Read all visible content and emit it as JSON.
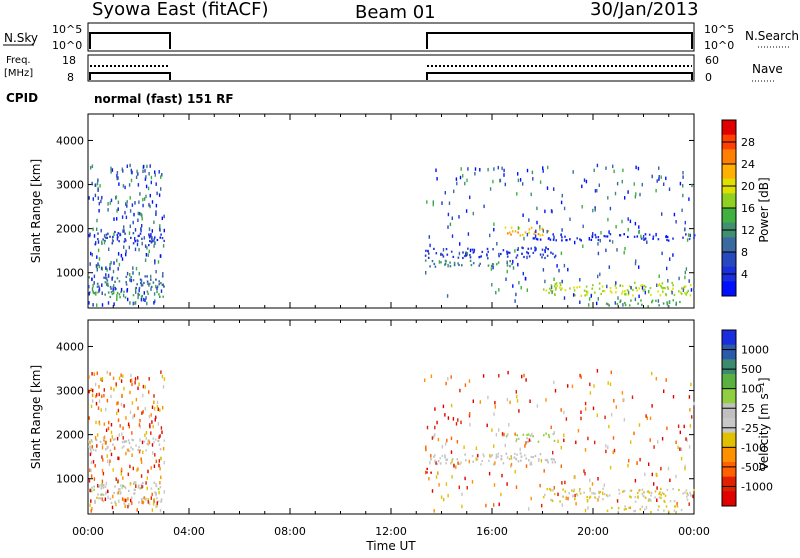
{
  "header": {
    "title": "Syowa East (fitACF)",
    "beam": "Beam 01",
    "date": "30/Jan/2013"
  },
  "panels": {
    "nsky": {
      "label": "N.Sky",
      "right_label": "N.Search",
      "left_ticks": [
        "10^5",
        "10^0"
      ],
      "right_ticks": [
        "10^5",
        "10^0"
      ]
    },
    "freq": {
      "label_line1": "Freq.",
      "label_line2": "[MHz]",
      "right_label": "Nave",
      "left_ticks": [
        "18",
        "8"
      ],
      "right_ticks": [
        "60",
        "0"
      ]
    },
    "cpid": {
      "label": "CPID",
      "text": "normal (fast) 151 RF"
    }
  },
  "colorbars": {
    "power": {
      "label": "Power [dB]",
      "ticks": [
        "28",
        "24",
        "20",
        "16",
        "12",
        "8",
        "4"
      ],
      "colors": [
        "#e00000",
        "#ff4000",
        "#ff8000",
        "#ffb000",
        "#e0e000",
        "#90d020",
        "#40b040",
        "#409070",
        "#3a6aa0",
        "#2848c0",
        "#1a2ee0",
        "#0010ff"
      ]
    },
    "velocity": {
      "label": "Velocity [m s⁻¹]",
      "ticks": [
        "1000",
        "500",
        "100",
        "25",
        "-25",
        "-100",
        "-500",
        "-1000"
      ],
      "colors": [
        "#1a2ee0",
        "#2a5aa8",
        "#3c8a70",
        "#5ab040",
        "#90d040",
        "#c0c0c0",
        "#c8c8c8",
        "#e0c000",
        "#ff9000",
        "#ff6000",
        "#e02000",
        "#e00000"
      ]
    }
  },
  "x_axis": {
    "label": "Time UT",
    "ticks": [
      "00:00",
      "04:00",
      "08:00",
      "12:00",
      "16:00",
      "20:00",
      "00:00"
    ]
  },
  "chart_data": [
    {
      "type": "heatmap",
      "name": "power",
      "ylabel": "Slant Range [km]",
      "xlabel": "",
      "ylim": [
        200,
        4600
      ],
      "xlim_hours": [
        0,
        24
      ],
      "yticks": [
        1000,
        2000,
        3000,
        4000
      ],
      "xticks": [
        "00:00",
        "04:00",
        "08:00",
        "12:00",
        "16:00",
        "20:00",
        "00:00"
      ],
      "data_gaps_hours": [
        [
          3.0,
          13.3
        ]
      ],
      "echo_bands": [
        {
          "t": [
            0.0,
            3.0
          ],
          "range_km": [
            1650,
            1950
          ],
          "value": 6
        },
        {
          "t": [
            0.0,
            3.0
          ],
          "range_km": [
            650,
            950
          ],
          "value": 10
        },
        {
          "t": [
            0.0,
            3.0
          ],
          "range_km": [
            450,
            600
          ],
          "value": 14
        },
        {
          "t": [
            13.3,
            18.5
          ],
          "range_km": [
            1350,
            1600
          ],
          "value": 6
        },
        {
          "t": [
            13.3,
            17.0
          ],
          "range_km": [
            1150,
            1300
          ],
          "value": 12
        },
        {
          "t": [
            16.5,
            18.5
          ],
          "range_km": [
            1850,
            2050
          ],
          "value": 22
        },
        {
          "t": [
            18.0,
            24.0
          ],
          "range_km": [
            500,
            800
          ],
          "value": 18
        },
        {
          "t": [
            20.5,
            23.5
          ],
          "range_km": [
            250,
            400
          ],
          "value": 14
        },
        {
          "t": [
            17.5,
            24.0
          ],
          "range_km": [
            1750,
            1900
          ],
          "value": 5
        }
      ]
    },
    {
      "type": "heatmap",
      "name": "velocity",
      "ylabel": "Slant Range [km]",
      "xlabel": "Time UT",
      "ylim": [
        200,
        4600
      ],
      "xlim_hours": [
        0,
        24
      ],
      "yticks": [
        1000,
        2000,
        3000,
        4000
      ],
      "xticks": [
        "00:00",
        "04:00",
        "08:00",
        "12:00",
        "16:00",
        "20:00",
        "00:00"
      ],
      "data_gaps_hours": [
        [
          3.0,
          13.3
        ]
      ],
      "echo_bands": [
        {
          "t": [
            0.0,
            3.0
          ],
          "range_km": [
            1650,
            1950
          ],
          "value": 0
        },
        {
          "t": [
            0.0,
            3.0
          ],
          "range_km": [
            650,
            950
          ],
          "value": 60
        },
        {
          "t": [
            0.0,
            3.0
          ],
          "range_km": [
            450,
            600
          ],
          "value": -80
        },
        {
          "t": [
            13.3,
            18.5
          ],
          "range_km": [
            1350,
            1600
          ],
          "value": 0
        },
        {
          "t": [
            16.5,
            18.5
          ],
          "range_km": [
            1850,
            2050
          ],
          "value": 150
        },
        {
          "t": [
            18.0,
            24.0
          ],
          "range_km": [
            500,
            800
          ],
          "value": -150
        },
        {
          "t": [
            20.5,
            23.5
          ],
          "range_km": [
            250,
            400
          ],
          "value": -200
        },
        {
          "t": [
            13.3,
            13.6
          ],
          "range_km": [
            1100,
            1300
          ],
          "value": -1000
        }
      ]
    }
  ]
}
